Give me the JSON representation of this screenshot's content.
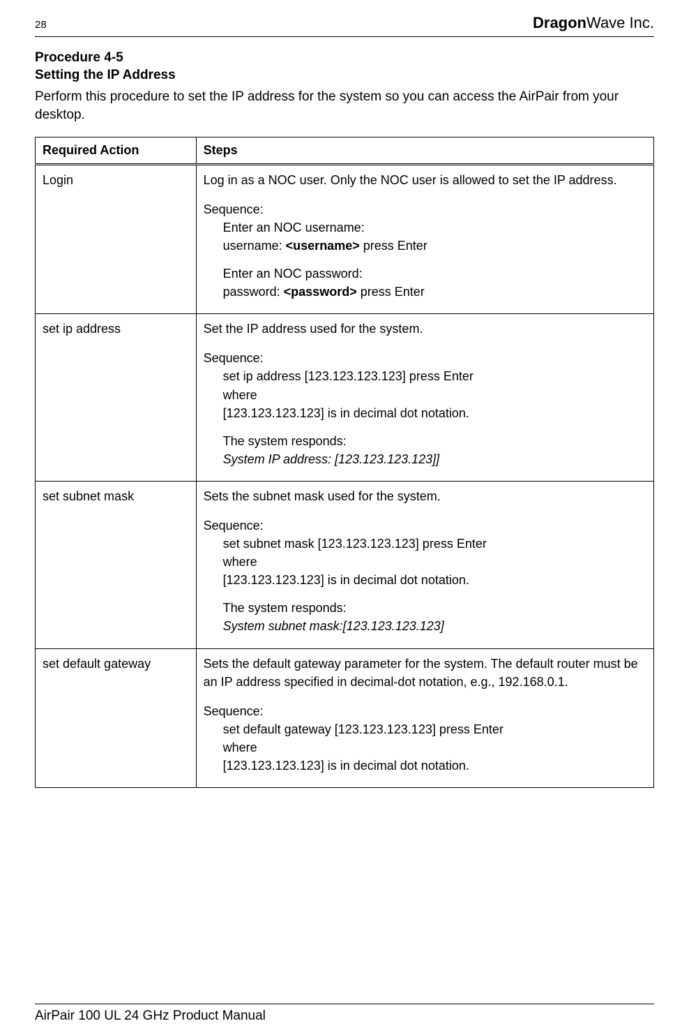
{
  "header": {
    "page_number": "28",
    "brand_bold": "Dragon",
    "brand_rest": "Wave Inc."
  },
  "procedure": {
    "code": "Procedure 4-5",
    "title": "Setting the IP Address",
    "description": "Perform this procedure to set the IP address for the system so you can access the AirPair from your desktop."
  },
  "table": {
    "col1_header": "Required Action",
    "col2_header": "Steps",
    "rows": [
      {
        "action": "Login",
        "intro": "Log in as a NOC user. Only the NOC user is allowed to set the IP address.",
        "seq_label": "Sequence:",
        "lines": [
          "Enter an NOC username:"
        ],
        "cred1_pre": "username: ",
        "cred1_bold": "<username>",
        "cred1_post": " press Enter",
        "lines2": [
          "Enter an NOC password:"
        ],
        "cred2_pre": "password: ",
        "cred2_bold": "<password>",
        "cred2_post": " press Enter"
      },
      {
        "action": "set ip address",
        "intro": "Set the IP address used for the system.",
        "seq_label": "Sequence:",
        "lines": [
          "set ip address [123.123.123.123] press Enter",
          "where",
          "[123.123.123.123] is in decimal dot notation."
        ],
        "resp_label": "The system responds:",
        "resp_italic": "System IP address: [123.123.123.123]]"
      },
      {
        "action": "set subnet mask",
        "intro": "Sets the subnet mask used for the system.",
        "seq_label": "Sequence:",
        "lines": [
          "set subnet mask [123.123.123.123] press Enter",
          "where",
          "[123.123.123.123] is in decimal dot notation."
        ],
        "resp_label": "The system responds:",
        "resp_italic": "System subnet mask:[123.123.123.123]"
      },
      {
        "action": "set default gateway",
        "intro": "Sets the default gateway parameter for the system. The default router must be an IP address specified in decimal-dot notation, e.g., 192.168.0.1.",
        "seq_label": "Sequence:",
        "lines": [
          "set default gateway [123.123.123.123] press Enter",
          "where",
          "[123.123.123.123] is in decimal dot notation."
        ]
      }
    ]
  },
  "footer": {
    "text": "AirPair 100 UL 24 GHz Product Manual"
  }
}
